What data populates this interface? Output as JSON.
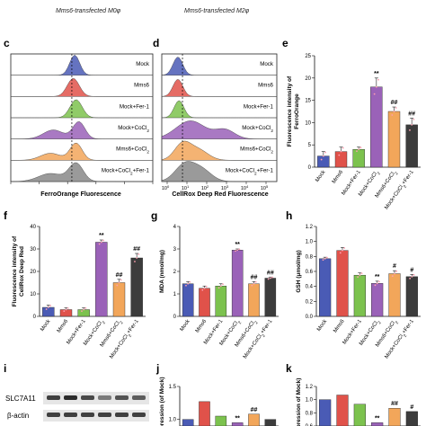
{
  "figure": {
    "top_captions": [
      "Mms6-transfected M0φ",
      "Mms6-transfected M2φ"
    ],
    "panel_letters": [
      "c",
      "d",
      "e",
      "f",
      "g",
      "h",
      "i",
      "j",
      "k"
    ]
  },
  "colors": {
    "mock": "#4a5bb5",
    "mms6": "#e0524a",
    "fer1": "#7cc24e",
    "cocl2": "#9a62b8",
    "mms6_cocl2": "#f2a65a",
    "cocl2_fer1": "#3c3c3c"
  },
  "chart_data": [
    {
      "panel": "c",
      "type": "histogram",
      "xlabel": "FerroOrange Fluorescence",
      "series": [
        {
          "name": "Mock",
          "color": "#4a5bb5"
        },
        {
          "name": "Mms6",
          "color": "#e0524a"
        },
        {
          "name": "Mock+Fer-1",
          "color": "#7cc24e"
        },
        {
          "name": "Mock+CoCl2",
          "color": "#9a62b8"
        },
        {
          "name": "Mms6+CoCl2",
          "color": "#f2a65a"
        },
        {
          "name": "Mock+CoCl2+Fer-1",
          "color": "#888888"
        }
      ]
    },
    {
      "panel": "d",
      "type": "histogram",
      "xlabel": "CellRox Deep Red Fluorescence",
      "xticks": [
        "10",
        "10",
        "10",
        "10",
        "10",
        "10"
      ],
      "xtick_exponents": [
        "0",
        "1",
        "2",
        "3",
        "4",
        "5"
      ]
    },
    {
      "panel": "e",
      "type": "bar",
      "ylabel": "Fluorescence intensity of FerroOrange",
      "ylim": [
        0,
        25
      ],
      "yticks": [
        0,
        5,
        10,
        15,
        20,
        25
      ],
      "categories": [
        "Mock",
        "Mms6",
        "Mock+Fer-1",
        "Mock+CoCl2",
        "Mms6+CoCl2",
        "Mock+CoCl2+Fer-1"
      ],
      "values": [
        2.5,
        3.5,
        4,
        18,
        12.5,
        9.5
      ],
      "errors": [
        1,
        1,
        0.5,
        2,
        1,
        1.5
      ],
      "annotations": [
        "",
        "",
        "",
        "**",
        "##",
        "##"
      ]
    },
    {
      "panel": "f",
      "type": "bar",
      "ylabel": "Fluorescence intensity of CellRox Deep Red",
      "ylim": [
        0,
        40
      ],
      "yticks": [
        0,
        10,
        20,
        30,
        40
      ],
      "categories": [
        "Mock",
        "Mms6",
        "Mock+Fer-1",
        "Mock+CoCl2",
        "Mms6+CoCl2",
        "Mock+CoCl2+Fer-1"
      ],
      "values": [
        4,
        3,
        3,
        33,
        15,
        26
      ],
      "errors": [
        1,
        0.8,
        0.8,
        1,
        1.5,
        2
      ],
      "annotations": [
        "",
        "",
        "",
        "**",
        "##",
        "##"
      ]
    },
    {
      "panel": "g",
      "type": "bar",
      "ylabel": "MDA (nmol/mg)",
      "ylim": [
        0,
        4
      ],
      "yticks": [
        0,
        1,
        2,
        3,
        4
      ],
      "categories": [
        "Mock",
        "Mms6",
        "Mock+Fer-1",
        "Mock+CoCl2",
        "Mms6+CoCl2",
        "Mock+CoCl2+Fer-1"
      ],
      "values": [
        1.45,
        1.25,
        1.35,
        2.95,
        1.45,
        1.7
      ],
      "errors": [
        0.1,
        0.1,
        0.1,
        0.05,
        0.1,
        0.05
      ],
      "annotations": [
        "",
        "",
        "",
        "**",
        "##",
        "##"
      ]
    },
    {
      "panel": "h",
      "type": "bar",
      "ylabel": "GSH (μmol/mg)",
      "ylim": [
        0,
        1.2
      ],
      "yticks": [
        0.0,
        0.2,
        0.4,
        0.6,
        0.8,
        1.0,
        1.2
      ],
      "categories": [
        "Mock",
        "Mms6",
        "Mock+Fer-1",
        "Mock+CoCl2",
        "Mms6+CoCl2",
        "Mock+CoCl2+Fer-1"
      ],
      "values": [
        0.77,
        0.88,
        0.55,
        0.44,
        0.57,
        0.53
      ],
      "errors": [
        0.02,
        0.04,
        0.03,
        0.03,
        0.04,
        0.03
      ],
      "annotations": [
        "",
        "",
        "",
        "**",
        "#",
        "#"
      ]
    },
    {
      "panel": "j",
      "type": "bar",
      "ylabel": "expression (of Mock)",
      "ylim": [
        0.9,
        1.5
      ],
      "yticks": [
        1.0,
        1.5
      ],
      "values": [
        1.0,
        1.27,
        1.05,
        0.95,
        1.08,
        1.0
      ],
      "annotations": [
        "",
        "",
        "",
        "**",
        "##",
        ""
      ]
    },
    {
      "panel": "k",
      "type": "bar",
      "ylabel": "expression of Mock)",
      "ylim": [
        0.6,
        1.2
      ],
      "yticks": [
        0.6,
        0.8,
        1.0,
        1.2
      ],
      "values": [
        1.0,
        1.07,
        0.93,
        0.65,
        0.87,
        0.82
      ],
      "annotations": [
        "",
        "",
        "",
        "**",
        "##",
        "#"
      ]
    }
  ],
  "blot": {
    "labels": [
      "SLC7A11",
      "β-actin"
    ],
    "left_num": "1"
  }
}
